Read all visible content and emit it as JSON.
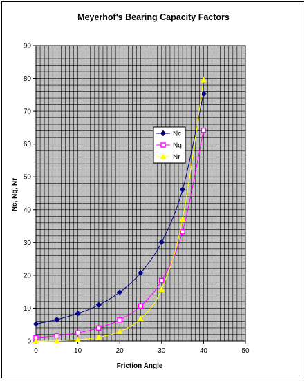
{
  "chart_data": {
    "type": "scatter",
    "title": "Meyerhof's Bearing Capacity Factors",
    "xlabel": "Friction Angle",
    "ylabel": "Nc, Nq, Nr",
    "xlim": [
      0,
      50
    ],
    "ylim": [
      0,
      90
    ],
    "x_ticks": [
      0,
      10,
      20,
      30,
      40,
      50
    ],
    "y_ticks": [
      0,
      10,
      20,
      30,
      40,
      50,
      60,
      70,
      80,
      90
    ],
    "x_tick_labels": [
      "0",
      "10",
      "20",
      "30",
      "40",
      "50"
    ],
    "y_tick_labels": [
      "0",
      "10",
      "20",
      "30",
      "40",
      "50",
      "60",
      "70",
      "80",
      "90"
    ],
    "grid": true,
    "legend": "center-right",
    "plot_background": "#c0c0c0",
    "series": [
      {
        "name": "Nc",
        "color": "#000080",
        "marker": "diamond",
        "x": [
          0,
          5,
          10,
          15,
          20,
          25,
          30,
          35,
          40
        ],
        "y": [
          5.14,
          6.49,
          8.34,
          10.98,
          14.83,
          20.72,
          30.14,
          46.12,
          75.31
        ]
      },
      {
        "name": "Nq",
        "color": "#ff00ff",
        "marker": "square",
        "x": [
          0,
          5,
          10,
          15,
          20,
          25,
          30,
          35,
          40
        ],
        "y": [
          1.0,
          1.57,
          2.47,
          3.94,
          6.4,
          10.66,
          18.4,
          33.3,
          64.2
        ]
      },
      {
        "name": "Nr",
        "color": "#ffff00",
        "marker": "triangle",
        "x": [
          0,
          5,
          10,
          15,
          20,
          25,
          30,
          35,
          40
        ],
        "y": [
          0.0,
          0.07,
          0.37,
          1.13,
          2.87,
          6.77,
          15.67,
          37.15,
          79.54
        ]
      }
    ]
  }
}
